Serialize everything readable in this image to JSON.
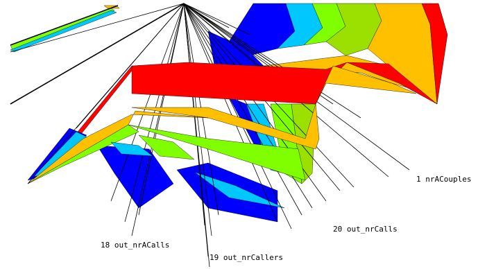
{
  "chart_data": {
    "type": "star-glyph",
    "axis_labels": [
      "1 nrACouples",
      "20 out_nrCalls",
      "19 out_nrCallers",
      "18 out_nrACalls"
    ],
    "series": [
      {
        "color": "#ff0000"
      },
      {
        "color": "#ffc000"
      },
      {
        "color": "#80ff00"
      },
      {
        "color": "#00c8ff"
      },
      {
        "color": "#0000ff"
      }
    ]
  }
}
